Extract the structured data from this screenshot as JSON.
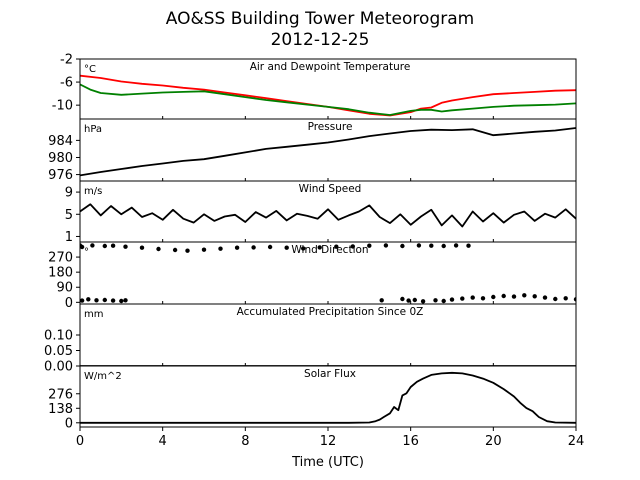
{
  "chart_data": {
    "type": "line",
    "title": "AO&SS Building Tower Meteorogram",
    "subtitle": "2012-12-25",
    "xlabel": "Time (UTC)",
    "xlim": [
      0,
      24
    ],
    "xticks": [
      0,
      4,
      8,
      12,
      16,
      20,
      24
    ],
    "panels": [
      {
        "title": "Air and Dewpoint Temperature",
        "unit": "°C",
        "ylim": [
          -12.4,
          -2
        ],
        "yticks": [
          "-2",
          "-6",
          "-10"
        ],
        "ytick_values": [
          -2,
          -6,
          -10
        ],
        "series": [
          {
            "color": "#ff0000",
            "x": [
              0,
              1,
              2,
              3,
              4,
              5,
              6,
              7,
              8,
              9,
              10,
              11,
              12,
              13,
              14,
              15,
              16,
              16.5,
              17,
              17.5,
              18,
              19,
              20,
              21,
              22,
              23,
              24
            ],
            "y": [
              -4.9,
              -5.3,
              -5.9,
              -6.3,
              -6.6,
              -7.0,
              -7.3,
              -7.8,
              -8.3,
              -8.8,
              -9.3,
              -9.8,
              -10.3,
              -10.9,
              -11.5,
              -11.8,
              -11.2,
              -10.6,
              -10.4,
              -9.6,
              -9.2,
              -8.6,
              -8.1,
              -7.9,
              -7.7,
              -7.5,
              -7.4
            ]
          },
          {
            "color": "#008000",
            "x": [
              0,
              0.5,
              1,
              2,
              3,
              4,
              5,
              6,
              7,
              8,
              9,
              10,
              11,
              12,
              13,
              14,
              15,
              16,
              16.5,
              17,
              17.5,
              18,
              19,
              20,
              21,
              22,
              23,
              24
            ],
            "y": [
              -6.4,
              -7.3,
              -7.9,
              -8.2,
              -8.0,
              -7.8,
              -7.7,
              -7.6,
              -8.1,
              -8.6,
              -9.1,
              -9.5,
              -9.9,
              -10.3,
              -10.7,
              -11.3,
              -11.7,
              -11.0,
              -10.8,
              -10.8,
              -11.1,
              -10.9,
              -10.6,
              -10.3,
              -10.1,
              -10.0,
              -9.9,
              -9.7
            ]
          }
        ]
      },
      {
        "title": "Pressure",
        "unit": "hPa",
        "ylim": [
          974.5,
          989
        ],
        "yticks": [
          "984",
          "980",
          "976"
        ],
        "ytick_values": [
          984,
          980,
          976
        ],
        "series": [
          {
            "color": "#000000",
            "x": [
              0,
              1,
              2,
              3,
              4,
              5,
              6,
              7,
              8,
              9,
              10,
              11,
              12,
              13,
              14,
              15,
              16,
              17,
              18,
              19,
              20,
              21,
              22,
              23,
              24
            ],
            "y": [
              975.8,
              976.6,
              977.3,
              978.0,
              978.6,
              979.2,
              979.6,
              980.4,
              981.2,
              982.0,
              982.5,
              983.0,
              983.5,
              984.2,
              985.0,
              985.6,
              986.2,
              986.5,
              986.4,
              986.6,
              985.2,
              985.6,
              986.0,
              986.3,
              986.9
            ]
          }
        ]
      },
      {
        "title": "Wind Speed",
        "unit": "m/s",
        "ylim": [
          0,
          11
        ],
        "yticks": [
          "9",
          "5",
          "1"
        ],
        "ytick_values": [
          9,
          5,
          1
        ],
        "series": [
          {
            "color": "#000000",
            "x": [
              0,
              0.5,
              1,
              1.5,
              2,
              2.5,
              3,
              3.5,
              4,
              4.5,
              5,
              5.5,
              6,
              6.5,
              7,
              7.5,
              8,
              8.5,
              9,
              9.5,
              10,
              10.5,
              11,
              11.5,
              12,
              12.5,
              13,
              13.5,
              14,
              14.5,
              15,
              15.5,
              16,
              16.5,
              17,
              17.5,
              18,
              18.5,
              19,
              19.5,
              20,
              20.5,
              21,
              21.5,
              22,
              22.5,
              23,
              23.5,
              24
            ],
            "y": [
              5.5,
              6.8,
              4.8,
              6.5,
              5.0,
              6.2,
              4.5,
              5.2,
              4.0,
              5.8,
              4.2,
              3.5,
              5.0,
              3.8,
              4.6,
              4.9,
              3.6,
              5.4,
              4.4,
              5.6,
              3.9,
              5.1,
              4.7,
              4.2,
              5.9,
              4.0,
              4.8,
              5.5,
              6.6,
              4.5,
              3.4,
              5.0,
              3.1,
              4.6,
              5.8,
              3.0,
              4.8,
              2.8,
              5.5,
              3.7,
              5.2,
              3.5,
              4.9,
              5.5,
              3.8,
              5.1,
              4.4,
              5.9,
              4.2
            ]
          }
        ]
      },
      {
        "title": "Wind Direction",
        "unit": "°",
        "ylim": [
          -10,
          360
        ],
        "yticks": [
          "270",
          "180",
          "90",
          "0"
        ],
        "ytick_values": [
          270,
          180,
          90,
          0
        ],
        "series": [
          {
            "color": "#000000",
            "style": "dots",
            "x": [
              0,
              0.1,
              0.6,
              1.2,
              1.6,
              2.2,
              3.0,
              3.8,
              4.6,
              5.2,
              6.0,
              6.8,
              7.6,
              8.4,
              9.2,
              10.0,
              10.8,
              11.6,
              12.4,
              13.2,
              14.0,
              14.8,
              15.6,
              16.4,
              17.0,
              17.6,
              18.2,
              18.8
            ],
            "y": [
              340,
              330,
              340,
              336,
              338,
              332,
              326,
              318,
              312,
              308,
              314,
              320,
              326,
              328,
              330,
              326,
              322,
              328,
              332,
              334,
              338,
              340,
              336,
              340,
              338,
              336,
              340,
              338
            ]
          },
          {
            "color": "#000000",
            "style": "dots",
            "x": [
              0.1,
              0.4,
              0.8,
              1.2,
              1.6,
              2.0,
              2.2,
              14.6,
              15.6,
              15.9,
              16.2,
              16.6,
              17.2,
              17.6,
              18.0,
              18.5,
              19.0,
              19.5,
              20.0,
              20.5,
              21.0,
              21.5,
              22.0,
              22.5,
              23.0,
              23.5,
              24.0
            ],
            "y": [
              10,
              18,
              12,
              14,
              10,
              8,
              12,
              12,
              20,
              10,
              14,
              6,
              12,
              8,
              16,
              22,
              28,
              24,
              32,
              38,
              34,
              42,
              36,
              28,
              20,
              24,
              18
            ]
          }
        ]
      },
      {
        "title": "Accumulated Precipitation Since 0Z",
        "unit": "mm",
        "ylim": [
          0,
          0.2
        ],
        "yticks": [
          "0.10",
          "0.05",
          "0.00"
        ],
        "ytick_values": [
          0.1,
          0.05,
          0.0
        ],
        "series": [
          {
            "color": "#000000",
            "x": [
              0,
              24
            ],
            "y": [
              0,
              0
            ]
          }
        ]
      },
      {
        "title": "Solar Flux",
        "unit": "W/m^2",
        "ylim": [
          -40,
          540
        ],
        "yticks": [
          "276",
          "138",
          "0"
        ],
        "ytick_values": [
          276,
          138,
          0
        ],
        "series": [
          {
            "color": "#000000",
            "x": [
              0,
              13,
              14,
              14.3,
              14.5,
              14.7,
              15.0,
              15.2,
              15.4,
              15.6,
              15.8,
              16.0,
              16.3,
              16.6,
              17.0,
              17.5,
              18.0,
              18.5,
              19.0,
              19.5,
              20.0,
              20.5,
              21.0,
              21.3,
              21.6,
              21.9,
              22.2,
              22.6,
              23.0,
              24
            ],
            "y": [
              0,
              0,
              3,
              15,
              30,
              55,
              90,
              150,
              120,
              260,
              280,
              340,
              390,
              420,
              455,
              470,
              475,
              470,
              450,
              420,
              380,
              320,
              250,
              190,
              140,
              110,
              55,
              15,
              3,
              0
            ]
          }
        ]
      }
    ]
  }
}
